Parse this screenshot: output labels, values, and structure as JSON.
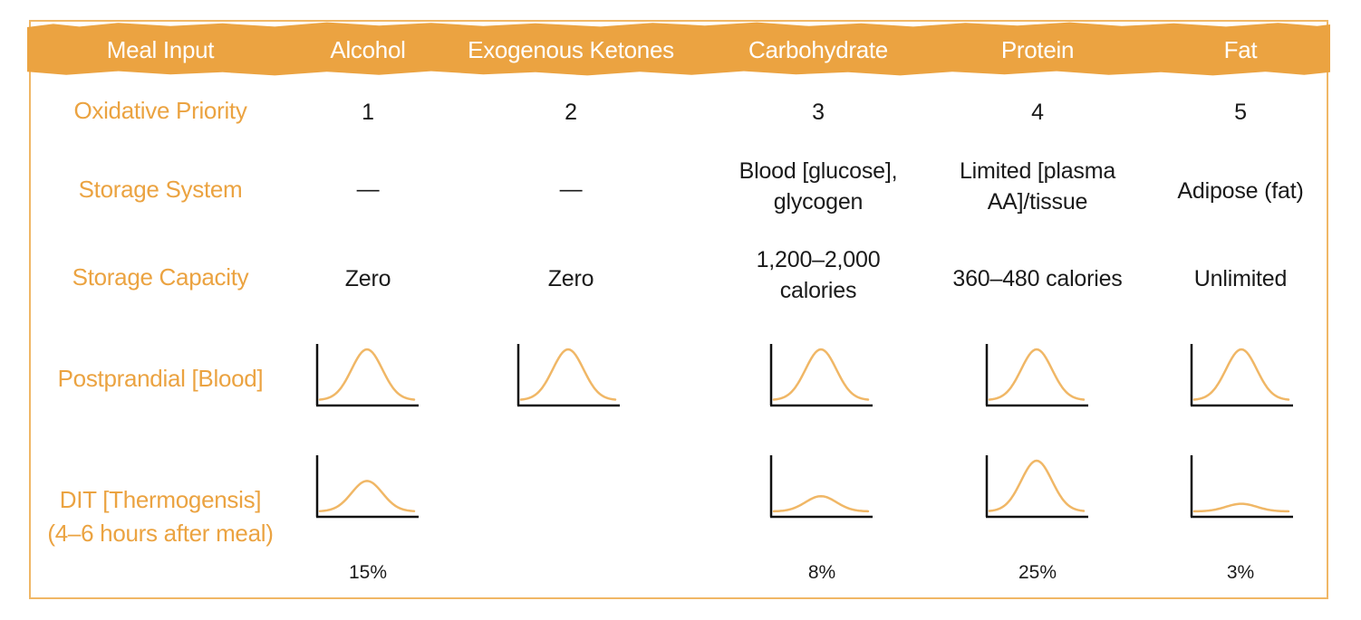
{
  "headers": {
    "meal_input": "Meal Input",
    "alcohol": "Alcohol",
    "ketones": "Exogenous Ketones",
    "carbohydrate": "Carbohydrate",
    "protein": "Protein",
    "fat": "Fat"
  },
  "row_labels": {
    "oxidative_priority": "Oxidative Priority",
    "storage_system": "Storage System",
    "storage_capacity": "Storage Capacity",
    "postprandial": "Postprandial [Blood]",
    "dit_line1": "DIT [Thermogensis]",
    "dit_line2": "(4–6 hours after meal)"
  },
  "oxidative_priority": {
    "alcohol": "1",
    "ketones": "2",
    "carbohydrate": "3",
    "protein": "4",
    "fat": "5"
  },
  "storage_system": {
    "alcohol": "—",
    "ketones": "—",
    "carbohydrate_line1": "Blood [glucose],",
    "carbohydrate_line2": "glycogen",
    "protein_line1": "Limited [plasma",
    "protein_line2": "AA]/tissue",
    "fat": "Adipose (fat)"
  },
  "storage_capacity": {
    "alcohol": "Zero",
    "ketones": "Zero",
    "carbohydrate_line1": "1,200–2,000",
    "carbohydrate_line2": "calories",
    "protein": "360–480 calories",
    "fat": "Unlimited"
  },
  "postprandial_peaks": {
    "alcohol": 1.0,
    "ketones": 1.0,
    "carbohydrate": 1.0,
    "protein": 1.0,
    "fat": 1.0
  },
  "dit_peaks": {
    "alcohol": 0.6,
    "carbohydrate": 0.3,
    "protein": 1.0,
    "fat": 0.15
  },
  "dit_percent": {
    "alcohol": "15%",
    "carbohydrate": "8%",
    "protein": "25%",
    "fat": "3%"
  },
  "colors": {
    "accent": "#eba341",
    "curve": "#f0b766",
    "axis": "#111111",
    "header_text": "#ffffff"
  }
}
